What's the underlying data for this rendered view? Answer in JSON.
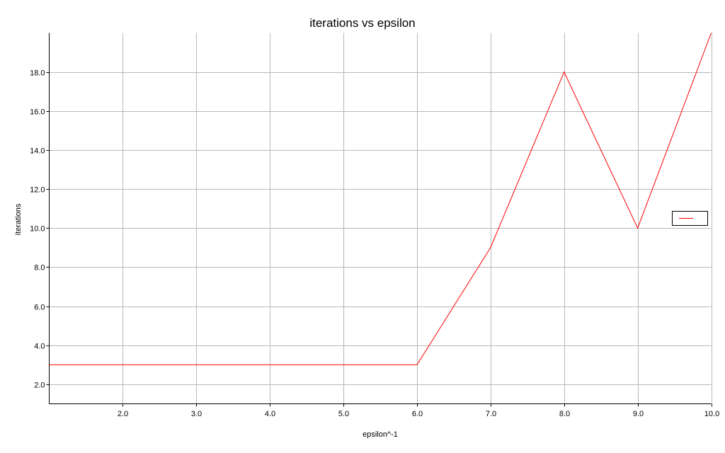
{
  "chart_data": {
    "type": "line",
    "title": "iterations vs epsilon",
    "xlabel": "epsilon^-1",
    "ylabel": "iterations",
    "xlim": [
      1.0,
      10.0
    ],
    "ylim": [
      1.0,
      20.0
    ],
    "x_ticks": [
      "2.0",
      "3.0",
      "4.0",
      "5.0",
      "6.0",
      "7.0",
      "8.0",
      "9.0",
      "10.0"
    ],
    "y_ticks": [
      "2.0",
      "4.0",
      "6.0",
      "8.0",
      "10.0",
      "12.0",
      "14.0",
      "16.0",
      "18.0"
    ],
    "grid": true,
    "legend_position": "right",
    "series": [
      {
        "color": "#ff0000",
        "x": [
          1,
          2,
          3,
          4,
          5,
          6,
          7,
          8,
          9,
          10
        ],
        "y": [
          3,
          3,
          3,
          3,
          3,
          3,
          9,
          18,
          10,
          20
        ]
      }
    ]
  }
}
